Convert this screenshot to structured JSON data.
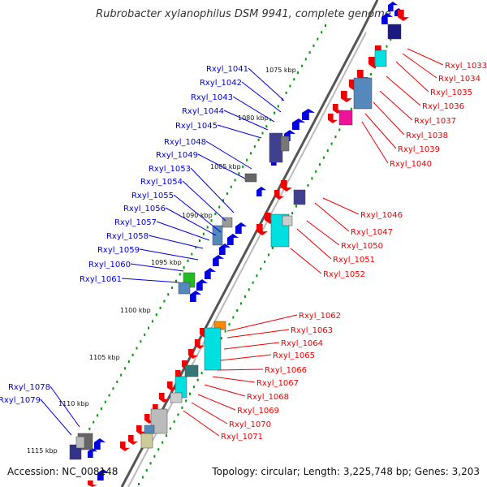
{
  "title": "Rubrobacter xylanophilus DSM 9941, complete genome",
  "footer": {
    "accession": "Accession: NC_008148",
    "summary": "Topology: circular; Length: 3,225,748 bp; Genes: 3,203"
  },
  "colors": {
    "forward": "#0000e0",
    "reverse": "#ee0000",
    "backbone": "#666666",
    "kbp_dots": "#009900"
  },
  "kbp_ticks": [
    "1075 kbp",
    "1080 kbp",
    "1085 kbp",
    "1090 kbp",
    "1095 kbp",
    "1100 kbp",
    "1105 kbp",
    "1110 kbp",
    "1115 kbp"
  ],
  "forward_genes": [
    "Rxyl_1041",
    "Rxyl_1042",
    "Rxyl_1043",
    "Rxyl_1044",
    "Rxyl_1045",
    "Rxyl_1048",
    "Rxyl_1049",
    "Rxyl_1053",
    "Rxyl_1054",
    "Rxyl_1055",
    "Rxyl_1056",
    "Rxyl_1057",
    "Rxyl_1058",
    "Rxyl_1059",
    "Rxyl_1060",
    "Rxyl_1061",
    "Rxyl_1078",
    "Rxyl_1079"
  ],
  "reverse_genes": [
    "Rxyl_1033",
    "Rxyl_1034",
    "Rxyl_1035",
    "Rxyl_1036",
    "Rxyl_1037",
    "Rxyl_1038",
    "Rxyl_1039",
    "Rxyl_1040",
    "Rxyl_1046",
    "Rxyl_1047",
    "Rxyl_1050",
    "Rxyl_1051",
    "Rxyl_1052",
    "Rxyl_1062",
    "Rxyl_1063",
    "Rxyl_1064",
    "Rxyl_1065",
    "Rxyl_1066",
    "Rxyl_1067",
    "Rxyl_1068",
    "Rxyl_1069",
    "Rxyl_1070",
    "Rxyl_1071"
  ]
}
